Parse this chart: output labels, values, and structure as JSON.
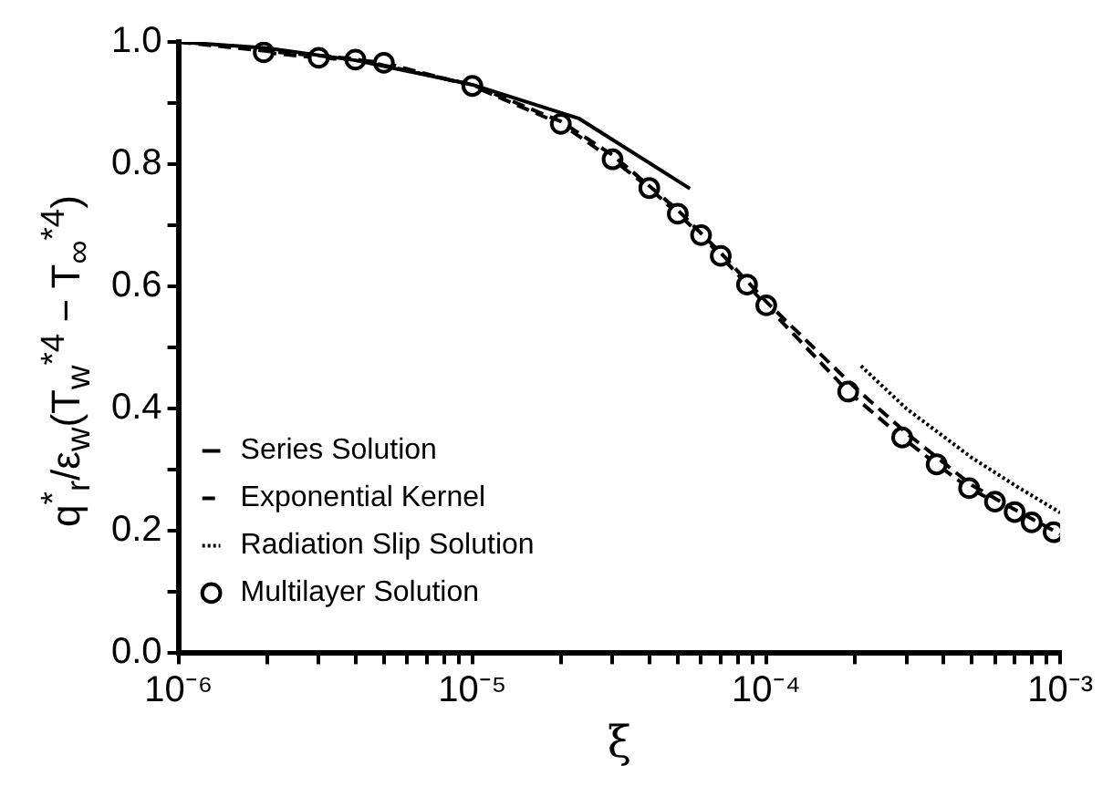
{
  "chart_data": {
    "type": "line",
    "xlabel": "ξ",
    "ylabel": "q$^{*}$$_{r}$/ε$_{w}$(T$_{w}$$^{*4}$ − T$_{∞}$$^{*4}$)",
    "log": "x",
    "xlim": [
      1e-06,
      0.001
    ],
    "ylim": [
      0,
      1
    ],
    "xticks": [
      {
        "value": 1e-06,
        "label": "10⁻⁶"
      },
      {
        "value": 2e-06,
        "label": null
      },
      {
        "value": 3e-06,
        "label": null
      },
      {
        "value": 4e-06,
        "label": null
      },
      {
        "value": 5e-06,
        "label": null
      },
      {
        "value": 6e-06,
        "label": null
      },
      {
        "value": 7e-06,
        "label": null
      },
      {
        "value": 8e-06,
        "label": null
      },
      {
        "value": 9e-06,
        "label": null
      },
      {
        "value": 1e-05,
        "label": "10⁻⁵"
      },
      {
        "value": 2e-05,
        "label": null
      },
      {
        "value": 3e-05,
        "label": null
      },
      {
        "value": 4e-05,
        "label": null
      },
      {
        "value": 5e-05,
        "label": null
      },
      {
        "value": 6e-05,
        "label": null
      },
      {
        "value": 7e-05,
        "label": null
      },
      {
        "value": 8e-05,
        "label": null
      },
      {
        "value": 9e-05,
        "label": null
      },
      {
        "value": 0.0001,
        "label": "10⁻⁴"
      },
      {
        "value": 0.0002,
        "label": null
      },
      {
        "value": 0.0003,
        "label": null
      },
      {
        "value": 0.0004,
        "label": null
      },
      {
        "value": 0.0005,
        "label": null
      },
      {
        "value": 0.0006,
        "label": null
      },
      {
        "value": 0.0007,
        "label": null
      },
      {
        "value": 0.0008,
        "label": null
      },
      {
        "value": 0.0009,
        "label": null
      },
      {
        "value": 0.001,
        "label": "10⁻³"
      }
    ],
    "yticks": [
      {
        "value": 0,
        "label": "0.0"
      },
      {
        "value": 0.1,
        "label": null
      },
      {
        "value": 0.2,
        "label": "0.2"
      },
      {
        "value": 0.3,
        "label": null
      },
      {
        "value": 0.4,
        "label": "0.4"
      },
      {
        "value": 0.5,
        "label": null
      },
      {
        "value": 0.6,
        "label": "0.6"
      },
      {
        "value": 0.7,
        "label": null
      },
      {
        "value": 0.8,
        "label": "0.8"
      },
      {
        "value": 0.9,
        "label": null
      },
      {
        "value": 1,
        "label": "1.0"
      }
    ],
    "grid": false,
    "legend": "bottom left",
    "series": [
      {
        "name": "Series Solution",
        "color": "#000000",
        "line_style": "solid",
        "marker": "none",
        "x": [
          1e-06,
          2e-06,
          4e-06,
          1e-05,
          2.3e-05,
          5.5e-05
        ],
        "values": [
          1.0,
          0.99,
          0.97,
          0.93,
          0.875,
          0.76
        ]
      },
      {
        "name": "Exponential Kernel",
        "color": "#000000",
        "line_style": "dashed",
        "marker": "none",
        "x": [
          1e-06,
          2e-06,
          4e-06,
          1e-05,
          2e-05,
          3e-05,
          5e-05,
          7e-05,
          0.0001,
          0.0002,
          0.0003,
          0.0005,
          0.0007,
          0.001
        ],
        "values": [
          1.0,
          0.985,
          0.972,
          0.93,
          0.87,
          0.815,
          0.725,
          0.655,
          0.575,
          0.435,
          0.36,
          0.275,
          0.235,
          0.195
        ]
      },
      {
        "name": "Radiation Slip Solution",
        "color": "#000000",
        "line_style": "dotted",
        "marker": "none",
        "x": [
          0.00021,
          0.0003,
          0.0005,
          0.0007,
          0.001
        ],
        "values": [
          0.47,
          0.4,
          0.32,
          0.275,
          0.23
        ]
      },
      {
        "name": "Multilayer Solution",
        "color": "#000000",
        "line_style": "dashed",
        "marker": "circle",
        "x": [
          1.95e-06,
          3e-06,
          4e-06,
          5e-06,
          1e-05,
          2e-05,
          3e-05,
          4e-05,
          5e-05,
          6e-05,
          7e-05,
          8.6e-05,
          0.0001,
          0.00019,
          0.00029,
          0.00038,
          0.00049,
          0.0006,
          0.0007,
          0.0008,
          0.00095
        ],
        "values": [
          0.983,
          0.974,
          0.971,
          0.966,
          0.928,
          0.866,
          0.808,
          0.761,
          0.719,
          0.684,
          0.65,
          0.603,
          0.569,
          0.428,
          0.353,
          0.309,
          0.27,
          0.248,
          0.231,
          0.214,
          0.198
        ]
      }
    ]
  }
}
